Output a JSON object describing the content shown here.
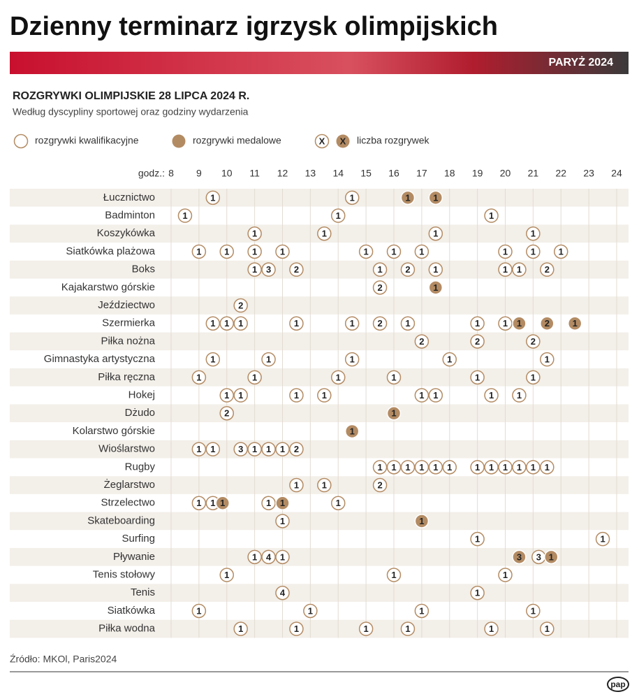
{
  "header": {
    "title": "Dzienny terminarz igrzysk olimpijskich",
    "banner": "PARYŻ 2024"
  },
  "chart_data": {
    "type": "timeline",
    "title": "ROZGRYWKI OLIMPIJSKIE 28 LIPCA 2024 R.",
    "subtitle": "Według dyscypliny sportowej oraz godziny wydarzenia",
    "legend": {
      "qualifying": "rozgrywki kwalifikacyjne",
      "medal": "rozgrywki medalowe",
      "symbol": "X",
      "count": "liczba rozgrywek"
    },
    "colors": {
      "qualifying": "#b38b63",
      "medal": "#b38b63"
    },
    "x_label": "godz.:",
    "xlim": [
      8,
      24
    ],
    "xticks": [
      8,
      9,
      10,
      11,
      12,
      13,
      14,
      15,
      16,
      17,
      18,
      19,
      20,
      21,
      22,
      23,
      24
    ],
    "series": [
      {
        "name": "Łucznictwo",
        "x": [
          9.5,
          14.5,
          16.5,
          17.5
        ],
        "values": [
          1,
          1,
          1,
          1
        ],
        "medal": [
          false,
          false,
          true,
          true
        ]
      },
      {
        "name": "Badminton",
        "x": [
          8.5,
          14,
          19.5
        ],
        "values": [
          1,
          1,
          1
        ],
        "medal": [
          false,
          false,
          false
        ]
      },
      {
        "name": "Koszykówka",
        "x": [
          11,
          13.5,
          17.5,
          21
        ],
        "values": [
          1,
          1,
          1,
          1
        ],
        "medal": [
          false,
          false,
          false,
          false
        ]
      },
      {
        "name": "Siatkówka plażowa",
        "x": [
          9,
          10,
          11,
          12,
          15,
          16,
          17,
          20,
          21,
          22
        ],
        "values": [
          1,
          1,
          1,
          1,
          1,
          1,
          1,
          1,
          1,
          1
        ],
        "medal": [
          false,
          false,
          false,
          false,
          false,
          false,
          false,
          false,
          false,
          false
        ]
      },
      {
        "name": "Boks",
        "x": [
          11,
          11.5,
          12.5,
          15.5,
          16.5,
          17.5,
          20,
          20.5,
          21.5
        ],
        "values": [
          1,
          3,
          2,
          1,
          2,
          1,
          1,
          1,
          2
        ],
        "medal": [
          false,
          false,
          false,
          false,
          false,
          false,
          false,
          false,
          false
        ]
      },
      {
        "name": "Kajakarstwo górskie",
        "x": [
          15.5,
          17.5
        ],
        "values": [
          2,
          1
        ],
        "medal": [
          false,
          true
        ]
      },
      {
        "name": "Jeździectwo",
        "x": [
          10.5
        ],
        "values": [
          2
        ],
        "medal": [
          false
        ]
      },
      {
        "name": "Szermierka",
        "x": [
          9.5,
          10,
          10.5,
          12.5,
          14.5,
          15.5,
          16.5,
          19,
          20,
          20.5,
          21.5,
          22.5
        ],
        "values": [
          1,
          1,
          1,
          1,
          1,
          2,
          1,
          1,
          1,
          1,
          2,
          1
        ],
        "medal": [
          false,
          false,
          false,
          false,
          false,
          false,
          false,
          false,
          false,
          true,
          true,
          true
        ]
      },
      {
        "name": "Piłka nożna",
        "x": [
          17,
          19,
          21
        ],
        "values": [
          2,
          2,
          2
        ],
        "medal": [
          false,
          false,
          false
        ]
      },
      {
        "name": "Gimnastyka artystyczna",
        "x": [
          9.5,
          11.5,
          14.5,
          18,
          21.5
        ],
        "values": [
          1,
          1,
          1,
          1,
          1
        ],
        "medal": [
          false,
          false,
          false,
          false,
          false
        ]
      },
      {
        "name": "Piłka ręczna",
        "x": [
          9,
          11,
          14,
          16,
          19,
          21
        ],
        "values": [
          1,
          1,
          1,
          1,
          1,
          1
        ],
        "medal": [
          false,
          false,
          false,
          false,
          false,
          false
        ]
      },
      {
        "name": "Hokej",
        "x": [
          10,
          10.5,
          12.5,
          13.5,
          17,
          17.5,
          19.5,
          20.5
        ],
        "values": [
          1,
          1,
          1,
          1,
          1,
          1,
          1,
          1
        ],
        "medal": [
          false,
          false,
          false,
          false,
          false,
          false,
          false,
          false
        ]
      },
      {
        "name": "Dżudo",
        "x": [
          10,
          16
        ],
        "values": [
          2,
          1
        ],
        "medal": [
          false,
          true
        ]
      },
      {
        "name": "Kolarstwo górskie",
        "x": [
          14.5
        ],
        "values": [
          1
        ],
        "medal": [
          true
        ]
      },
      {
        "name": "Wioślarstwo",
        "x": [
          9,
          9.5,
          10.5,
          11,
          11.5,
          12,
          12.5
        ],
        "values": [
          1,
          1,
          3,
          1,
          1,
          1,
          2
        ],
        "medal": [
          false,
          false,
          false,
          false,
          false,
          false,
          false
        ]
      },
      {
        "name": "Rugby",
        "x": [
          15.5,
          16,
          16.5,
          17,
          17.5,
          18,
          19,
          19.5,
          20,
          20.5,
          21,
          21.5
        ],
        "values": [
          1,
          1,
          1,
          1,
          1,
          1,
          1,
          1,
          1,
          1,
          1,
          1
        ],
        "medal": [
          false,
          false,
          false,
          false,
          false,
          false,
          false,
          false,
          false,
          false,
          false,
          false
        ]
      },
      {
        "name": "Żeglarstwo",
        "x": [
          12.5,
          13.5,
          15.5
        ],
        "values": [
          1,
          1,
          2
        ],
        "medal": [
          false,
          false,
          false
        ]
      },
      {
        "name": "Strzelectwo",
        "x": [
          9,
          9.5,
          9.85,
          11.5,
          12,
          14
        ],
        "values": [
          1,
          1,
          1,
          1,
          1,
          1
        ],
        "medal": [
          false,
          false,
          true,
          false,
          true,
          false
        ]
      },
      {
        "name": "Skateboarding",
        "x": [
          12,
          17
        ],
        "values": [
          1,
          1
        ],
        "medal": [
          false,
          true
        ]
      },
      {
        "name": "Surfing",
        "x": [
          19,
          23.5
        ],
        "values": [
          1,
          1
        ],
        "medal": [
          false,
          false
        ]
      },
      {
        "name": "Pływanie",
        "x": [
          11,
          11.5,
          12,
          20.5,
          21.2,
          21.65
        ],
        "values": [
          1,
          4,
          1,
          3,
          3,
          1
        ],
        "medal": [
          false,
          false,
          false,
          true,
          false,
          true
        ]
      },
      {
        "name": "Tenis stołowy",
        "x": [
          10,
          16,
          20
        ],
        "values": [
          1,
          1,
          1
        ],
        "medal": [
          false,
          false,
          false
        ]
      },
      {
        "name": "Tenis",
        "x": [
          12,
          19
        ],
        "values": [
          4,
          1
        ],
        "medal": [
          false,
          false
        ]
      },
      {
        "name": "Siatkówka",
        "x": [
          9,
          13,
          17,
          21
        ],
        "values": [
          1,
          1,
          1,
          1
        ],
        "medal": [
          false,
          false,
          false,
          false
        ]
      },
      {
        "name": "Piłka wodna",
        "x": [
          10.5,
          12.5,
          15,
          16.5,
          19.5,
          21.5
        ],
        "values": [
          1,
          1,
          1,
          1,
          1,
          1
        ],
        "medal": [
          false,
          false,
          false,
          false,
          false,
          false
        ]
      }
    ]
  },
  "footer": {
    "source": "Źródło: MKOl, Paris2024",
    "logo": "pap"
  }
}
